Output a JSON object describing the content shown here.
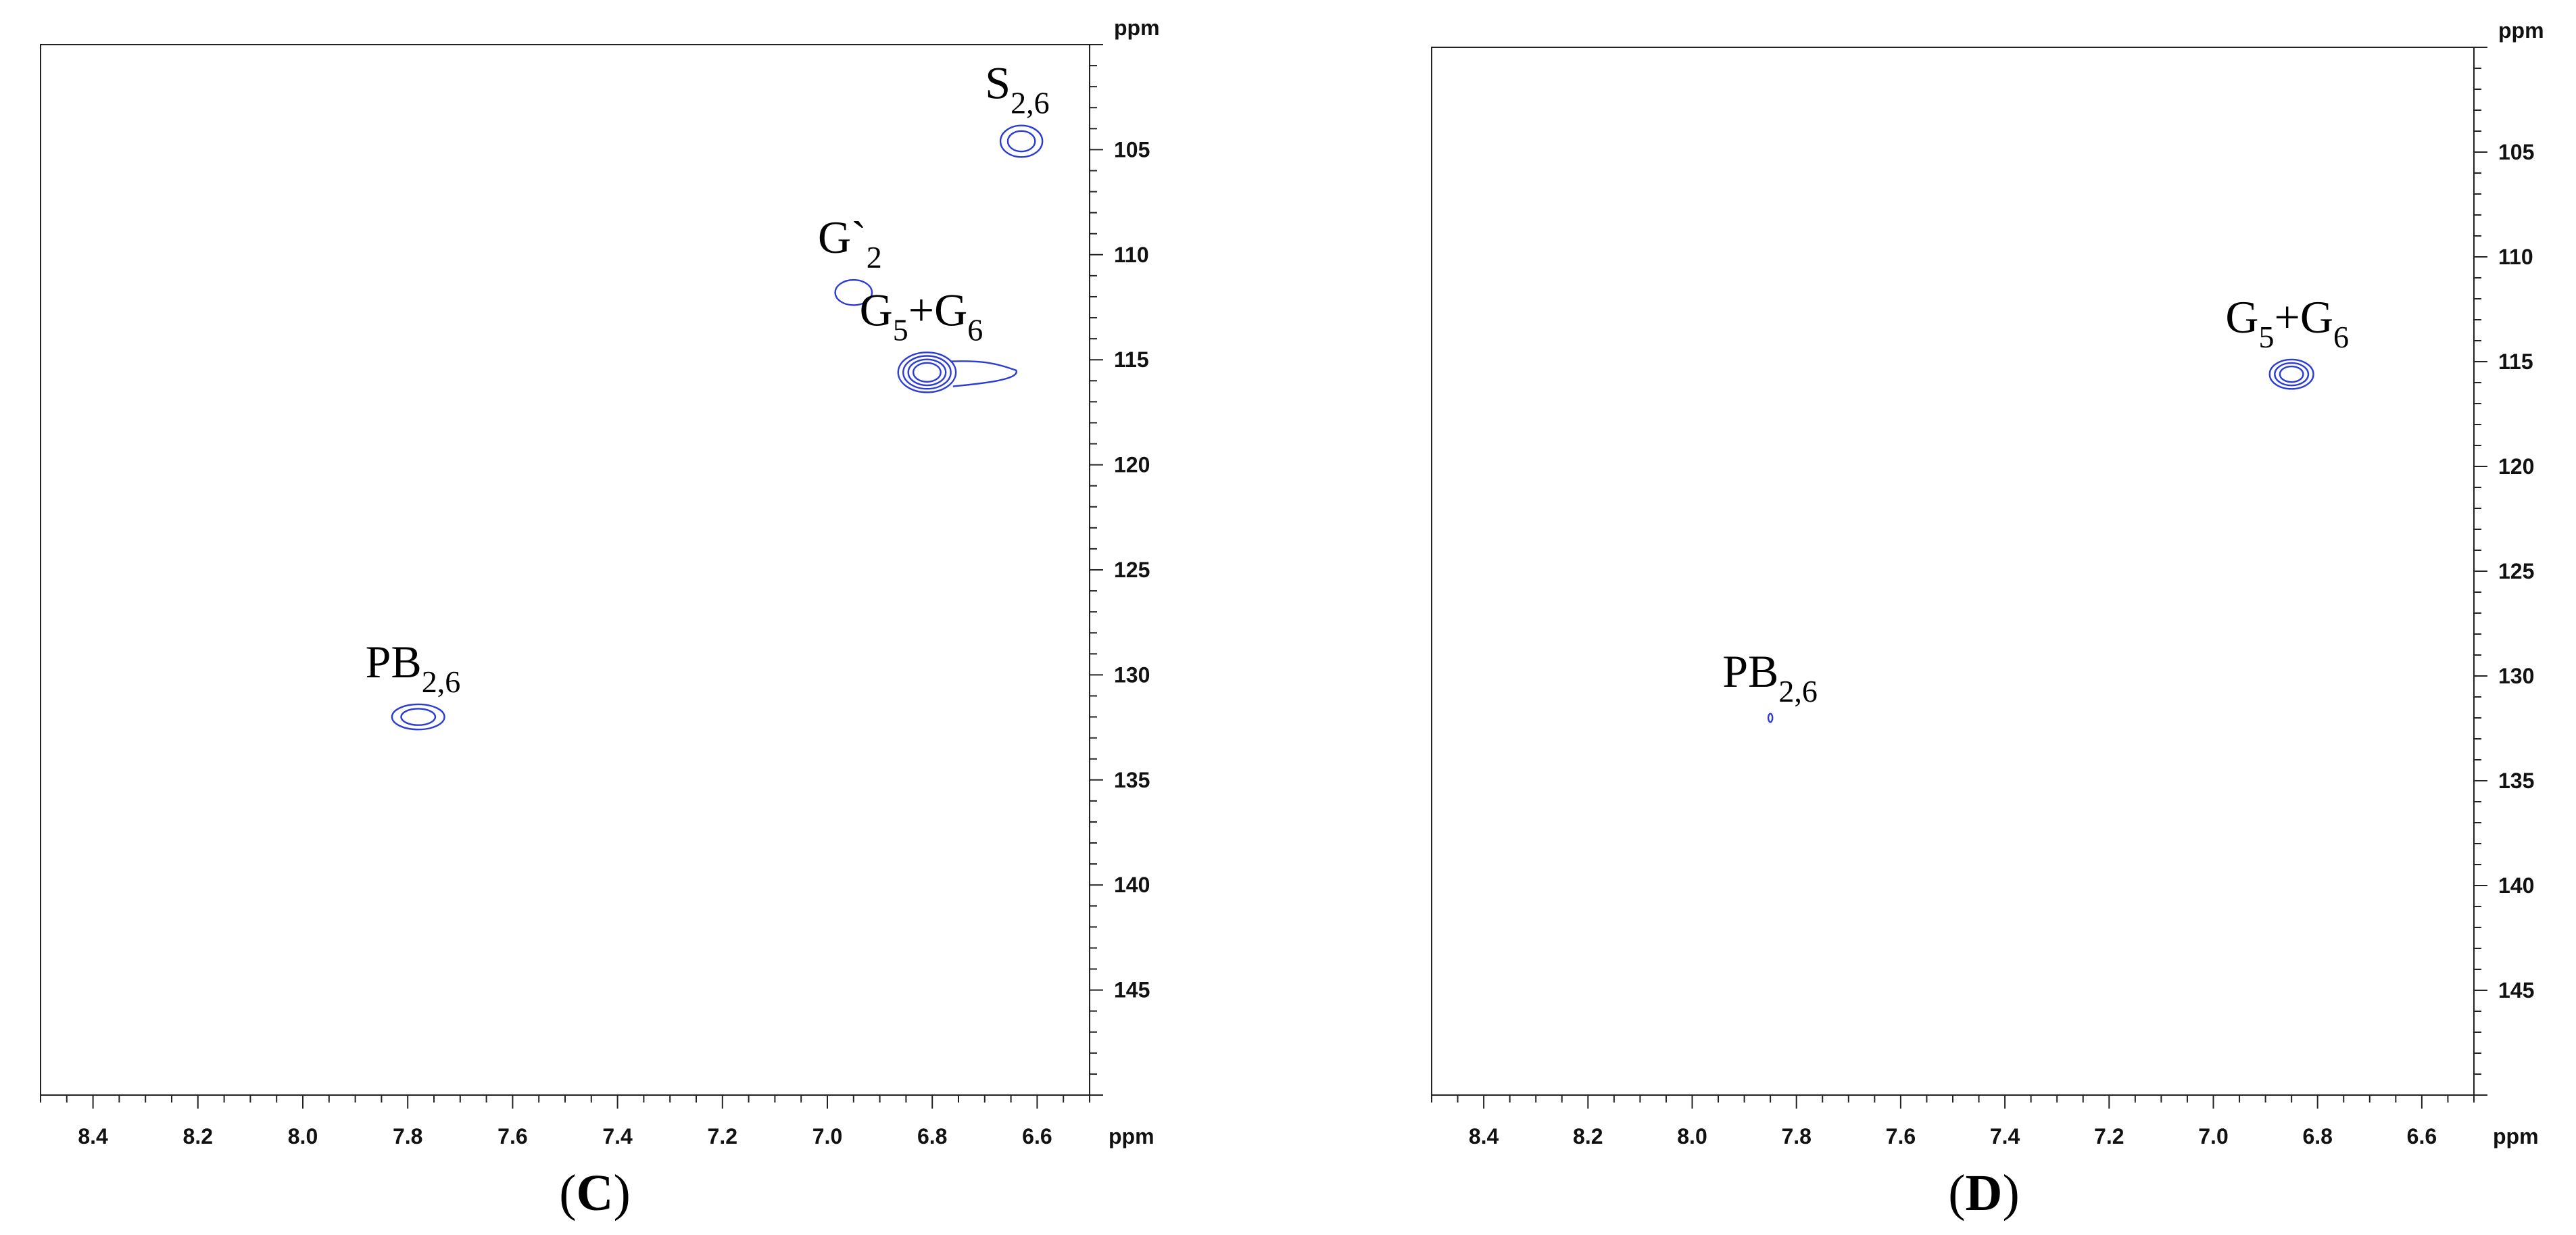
{
  "chart_data": [
    {
      "type": "scatter",
      "panel_label": "C",
      "x_unit": "ppm",
      "y_unit": "ppm",
      "xlim": [
        8.5,
        6.5
      ],
      "ylim": [
        100,
        150
      ],
      "x_ticks": [
        "8.4",
        "8.2",
        "8.0",
        "7.8",
        "7.6",
        "7.4",
        "7.2",
        "7.0",
        "6.8",
        "6.6"
      ],
      "y_ticks": [
        "105",
        "110",
        "115",
        "120",
        "125",
        "130",
        "135",
        "140",
        "145"
      ],
      "peaks": [
        {
          "label_main": "S",
          "label_sub": "2,6",
          "label_tail_main": "",
          "label_tail_sub": "",
          "x": 6.63,
          "y": 104.6,
          "rx": 0.04,
          "ry": 0.75,
          "levels": 2
        },
        {
          "label_main": "G`",
          "label_sub": "2",
          "label_tail_main": "",
          "label_tail_sub": "",
          "x": 6.95,
          "y": 111.8,
          "rx": 0.035,
          "ry": 0.6,
          "levels": 1
        },
        {
          "label_main": "G",
          "label_sub": "5",
          "label_tail_main": "+G",
          "label_tail_sub": "6",
          "x": 6.81,
          "y": 115.6,
          "rx": 0.055,
          "ry": 0.95,
          "levels": 4,
          "tail_to_x": 6.64
        },
        {
          "label_main": "PB",
          "label_sub": "2,6",
          "label_tail_main": "",
          "label_tail_sub": "",
          "x": 7.78,
          "y": 132.0,
          "rx": 0.05,
          "ry": 0.6,
          "levels": 2
        }
      ]
    },
    {
      "type": "scatter",
      "panel_label": "D",
      "x_unit": "ppm",
      "y_unit": "ppm",
      "xlim": [
        8.5,
        6.5
      ],
      "ylim": [
        100,
        150
      ],
      "x_ticks": [
        "8.4",
        "8.2",
        "8.0",
        "7.8",
        "7.6",
        "7.4",
        "7.2",
        "7.0",
        "6.8",
        "6.6"
      ],
      "y_ticks": [
        "105",
        "110",
        "115",
        "120",
        "125",
        "130",
        "135",
        "140",
        "145"
      ],
      "peaks": [
        {
          "label_main": "G",
          "label_sub": "5",
          "label_tail_main": "+G",
          "label_tail_sub": "6",
          "x": 6.85,
          "y": 115.6,
          "rx": 0.042,
          "ry": 0.7,
          "levels": 3
        },
        {
          "label_main": "PB",
          "label_sub": "2,6",
          "label_tail_main": "",
          "label_tail_sub": "",
          "x": 7.85,
          "y": 132.0,
          "rx": 0.004,
          "ry": 0.2,
          "levels": 1
        }
      ]
    }
  ],
  "contour_color": "#2a3bd8"
}
